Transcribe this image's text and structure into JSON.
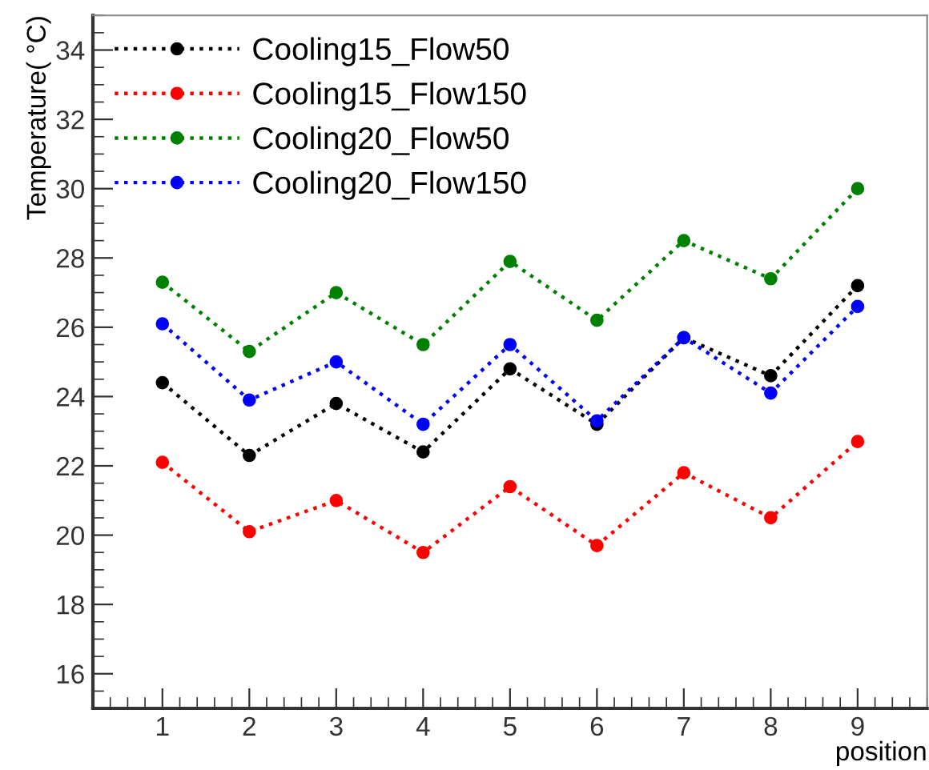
{
  "chart_data": {
    "type": "line",
    "xlabel": "position",
    "ylabel": "Temperature( °C)",
    "x": [
      1,
      2,
      3,
      4,
      5,
      6,
      7,
      8,
      9
    ],
    "xlim": [
      0.2,
      9.8
    ],
    "xticks": [
      1,
      2,
      3,
      4,
      5,
      6,
      7,
      8,
      9
    ],
    "ylim": [
      15,
      35
    ],
    "yticks": [
      16,
      18,
      20,
      22,
      24,
      26,
      28,
      30,
      32,
      34
    ],
    "grid": false,
    "legend": "top left",
    "marker": "circle",
    "line_style": "dotted",
    "series": [
      {
        "name": "Cooling15_Flow50",
        "color": "#000000",
        "values": [
          24.4,
          22.3,
          23.8,
          22.4,
          24.8,
          23.2,
          25.7,
          24.6,
          27.2
        ]
      },
      {
        "name": "Cooling15_Flow150",
        "color": "#ff0000",
        "values": [
          22.1,
          20.1,
          21.0,
          19.5,
          21.4,
          19.7,
          21.8,
          20.5,
          22.7
        ]
      },
      {
        "name": "Cooling20_Flow50",
        "color": "#008000",
        "values": [
          27.3,
          25.3,
          27.0,
          25.5,
          27.9,
          26.2,
          28.5,
          27.4,
          30.0
        ]
      },
      {
        "name": "Cooling20_Flow150",
        "color": "#0000ff",
        "values": [
          26.1,
          23.9,
          25.0,
          23.2,
          25.5,
          23.3,
          25.7,
          24.1,
          26.6
        ]
      }
    ]
  }
}
